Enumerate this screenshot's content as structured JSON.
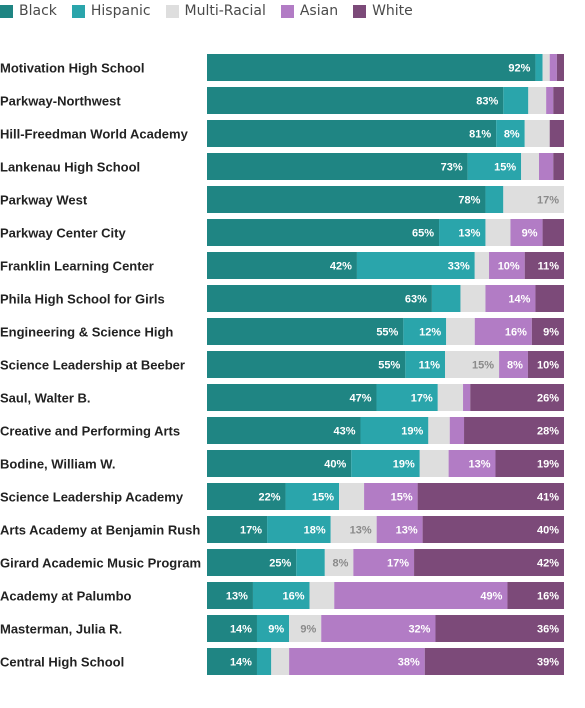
{
  "chart_data": {
    "type": "bar",
    "orientation": "horizontal",
    "stacked": true,
    "xlim": [
      0,
      100
    ],
    "legend_position": "top-left",
    "series": [
      {
        "name": "Black",
        "color": "#1f8583"
      },
      {
        "name": "Hispanic",
        "color": "#2aa5ab"
      },
      {
        "name": "Multi-Racial",
        "color": "#dedede"
      },
      {
        "name": "Asian",
        "color": "#b27cc5"
      },
      {
        "name": "White",
        "color": "#7c4a79"
      }
    ],
    "categories": [
      "Motivation High School",
      "Parkway-Northwest",
      "Hill-Freedman World Academy",
      "Lankenau High School",
      "Parkway West",
      "Parkway Center City",
      "Franklin Learning Center",
      "Phila High School for Girls",
      "Engineering & Science High",
      "Science Leadership at Beeber",
      "Saul, Walter B.",
      "Creative and Performing Arts",
      "Bodine, William W.",
      "Science Leadership Academy",
      "Arts Academy at Benjamin Rush",
      "Girard Academic Music Program",
      "Academy at Palumbo",
      "Masterman, Julia R.",
      "Central High School"
    ],
    "values": [
      [
        92,
        2,
        2,
        2,
        2
      ],
      [
        83,
        7,
        5,
        2,
        3
      ],
      [
        81,
        8,
        7,
        0,
        4
      ],
      [
        73,
        15,
        5,
        4,
        3
      ],
      [
        78,
        5,
        17,
        0,
        0
      ],
      [
        65,
        13,
        7,
        9,
        6
      ],
      [
        42,
        33,
        4,
        10,
        11
      ],
      [
        63,
        8,
        7,
        14,
        8
      ],
      [
        55,
        12,
        8,
        16,
        9
      ],
      [
        55,
        11,
        15,
        8,
        10
      ],
      [
        47,
        17,
        7,
        2,
        26
      ],
      [
        43,
        19,
        6,
        4,
        28
      ],
      [
        40,
        19,
        8,
        13,
        19
      ],
      [
        22,
        15,
        7,
        15,
        41
      ],
      [
        17,
        18,
        13,
        13,
        40
      ],
      [
        25,
        8,
        8,
        17,
        42
      ],
      [
        13,
        16,
        7,
        49,
        16
      ],
      [
        14,
        9,
        9,
        32,
        36
      ],
      [
        14,
        4,
        5,
        38,
        39
      ]
    ],
    "labels": [
      [
        "92%",
        "",
        "",
        "",
        ""
      ],
      [
        "83%",
        "",
        "",
        "",
        ""
      ],
      [
        "81%",
        "8%",
        "",
        "",
        ""
      ],
      [
        "73%",
        "15%",
        "",
        "",
        ""
      ],
      [
        "78%",
        "",
        "17%",
        "",
        ""
      ],
      [
        "65%",
        "13%",
        "",
        "9%",
        ""
      ],
      [
        "42%",
        "33%",
        "",
        "10%",
        "11%"
      ],
      [
        "63%",
        "",
        "",
        "14%",
        ""
      ],
      [
        "55%",
        "12%",
        "",
        "16%",
        "9%"
      ],
      [
        "55%",
        "11%",
        "15%",
        "8%",
        "10%"
      ],
      [
        "47%",
        "17%",
        "",
        "",
        "26%"
      ],
      [
        "43%",
        "19%",
        "",
        "",
        "28%"
      ],
      [
        "40%",
        "19%",
        "",
        "13%",
        "19%"
      ],
      [
        "22%",
        "15%",
        "",
        "15%",
        "41%"
      ],
      [
        "17%",
        "18%",
        "13%",
        "13%",
        "40%"
      ],
      [
        "25%",
        "",
        "8%",
        "17%",
        "42%"
      ],
      [
        "13%",
        "16%",
        "",
        "49%",
        "16%"
      ],
      [
        "14%",
        "9%",
        "9%",
        "32%",
        "36%"
      ],
      [
        "14%",
        "",
        "",
        "38%",
        "39%"
      ]
    ],
    "label_colors": [
      "#ffffff",
      "#ffffff",
      "#8a8a8a",
      "#ffffff",
      "#ffffff"
    ]
  }
}
